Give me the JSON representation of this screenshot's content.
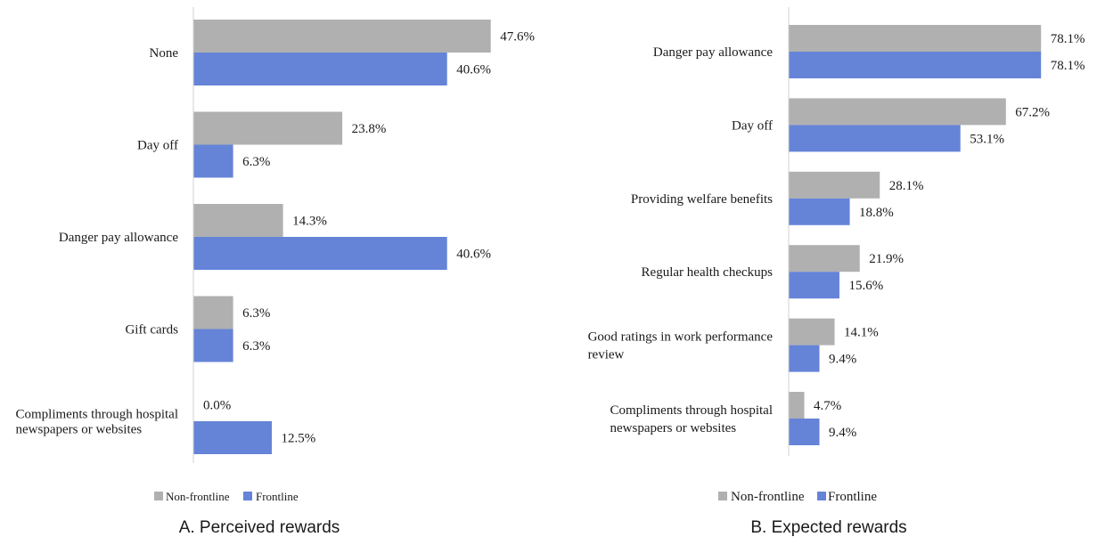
{
  "colors": {
    "non_frontline": "#b0b0b0",
    "frontline": "#6584d8",
    "axis": "#d0d0d0",
    "text": "#1a1a1a"
  },
  "chart_data": [
    {
      "type": "bar",
      "orientation": "horizontal",
      "title": "A. Perceived rewards",
      "categories": [
        "None",
        "Day off",
        "Danger pay allowance",
        "Gift cards",
        "Compliments through hospital newspapers or websites"
      ],
      "series": [
        {
          "name": "Non-frontline",
          "values": [
            47.6,
            23.8,
            14.3,
            6.3,
            0.0
          ]
        },
        {
          "name": "Frontline",
          "values": [
            40.6,
            6.3,
            40.6,
            6.3,
            12.5
          ]
        }
      ],
      "value_labels": [
        [
          "47.6%",
          "23.8%",
          "14.3%",
          "6.3%",
          "0.0%"
        ],
        [
          "40.6%",
          "6.3%",
          "40.6%",
          "6.3%",
          "12.5%"
        ]
      ],
      "xlim": [
        0,
        100
      ],
      "legend_position": "bottom",
      "grid": false
    },
    {
      "type": "bar",
      "orientation": "horizontal",
      "title": "B. Expected rewards",
      "categories": [
        "Danger pay allowance",
        "Day off",
        "Providing welfare benefits",
        "Regular health checkups",
        "Good ratings in work performance review",
        "Compliments through hospital newspapers or websites"
      ],
      "series": [
        {
          "name": "Non-frontline",
          "values": [
            78.1,
            67.2,
            28.1,
            21.9,
            14.1,
            4.7
          ]
        },
        {
          "name": "Frontline",
          "values": [
            78.1,
            53.1,
            18.8,
            15.6,
            9.4,
            9.4
          ]
        }
      ],
      "value_labels": [
        [
          "78.1%",
          "67.2%",
          "28.1%",
          "21.9%",
          "14.1%",
          "4.7%"
        ],
        [
          "78.1%",
          "53.1%",
          "18.8%",
          "15.6%",
          "9.4%",
          "9.4%"
        ]
      ],
      "xlim": [
        0,
        100
      ],
      "legend_position": "bottom",
      "grid": false
    }
  ]
}
